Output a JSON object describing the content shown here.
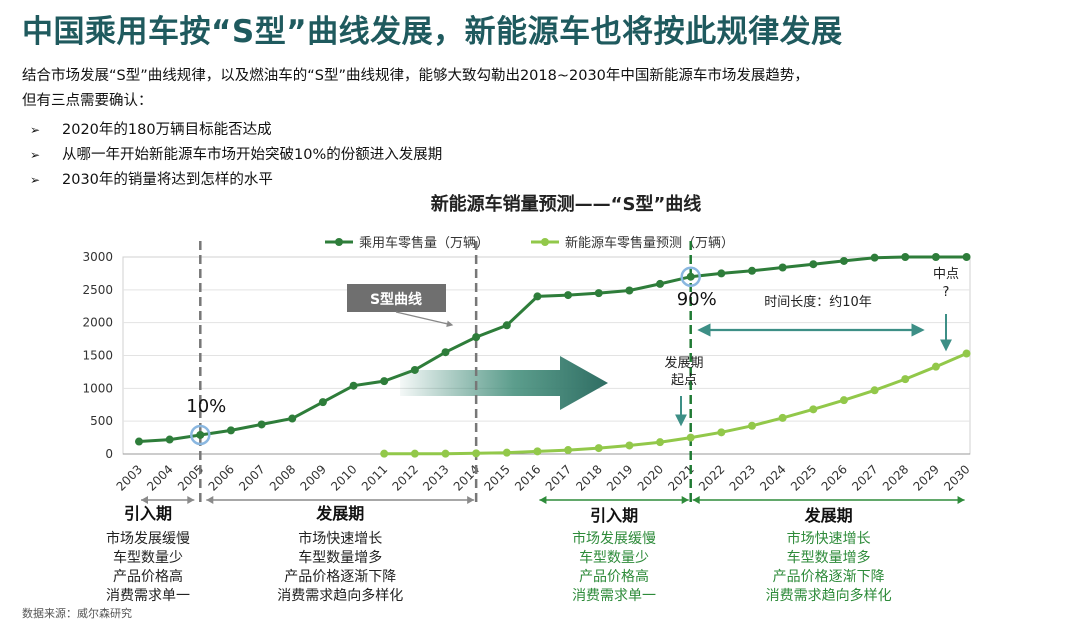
{
  "header": {
    "title": "中国乘用车按“S型”曲线发展，新能源车也将按此规律发展",
    "intro_line1": "结合市场发展“S型”曲线规律，以及燃油车的“S型”曲线规律，能够大致勾勒出2018~2030年中国新能源车市场发展趋势，",
    "intro_line2": "但有三点需要确认：",
    "bullets": [
      "2020年的180万辆目标能否达成",
      "从哪一年开始新能源车市场开始突破10%的份额进入发展期",
      "2030年的销量将达到怎样的水平"
    ]
  },
  "source": "数据来源：威尔森研究",
  "chart_data": {
    "type": "line",
    "title": "新能源车销量预测——“S型”曲线",
    "ylim": [
      0,
      3000
    ],
    "yticks": [
      0,
      500,
      1000,
      1500,
      2000,
      2500,
      3000
    ],
    "categories": [
      "2003",
      "2004",
      "2005",
      "2006",
      "2007",
      "2008",
      "2009",
      "2010",
      "2011",
      "2012",
      "2013",
      "2014",
      "2015",
      "2016",
      "2017",
      "2018",
      "2019",
      "2020",
      "2021",
      "2022",
      "2023",
      "2024",
      "2025",
      "2026",
      "2027",
      "2028",
      "2029",
      "2030"
    ],
    "series": [
      {
        "name": "乘用车零售量（万辆）",
        "color": "#2e7d3a",
        "values": [
          190,
          220,
          290,
          360,
          450,
          540,
          790,
          1040,
          1110,
          1280,
          1550,
          1780,
          1960,
          2400,
          2420,
          2450,
          2490,
          2590,
          2700,
          2750,
          2790,
          2840,
          2890,
          2940,
          2990,
          3000,
          3000,
          3000
        ]
      },
      {
        "name": "新能源车零售量预测（万辆）",
        "color": "#92c84a",
        "values": [
          null,
          null,
          null,
          null,
          null,
          null,
          null,
          null,
          5,
          5,
          5,
          10,
          20,
          40,
          60,
          90,
          130,
          180,
          250,
          330,
          430,
          550,
          680,
          820,
          970,
          1140,
          1330,
          1530
        ]
      }
    ],
    "annotations": {
      "pct10": "10%",
      "pct90": "90%",
      "s_curve": "S型曲线",
      "start_point": [
        "发展期",
        "起点"
      ],
      "mid_point": [
        "中点",
        "?"
      ],
      "duration": "时间长度：约10年"
    },
    "phases": [
      {
        "label": "引入期",
        "desc": [
          "市场发展缓慢",
          "车型数量少",
          "产品价格高",
          "消费需求单一"
        ],
        "color": "#222222",
        "span": [
          "2003",
          "2005"
        ]
      },
      {
        "label": "发展期",
        "desc": [
          "市场快速增长",
          "车型数量增多",
          "产品价格逐渐下降",
          "消费需求趋向多样化"
        ],
        "color": "#222222",
        "span": [
          "2005",
          "2014"
        ]
      },
      {
        "label": "引入期",
        "desc": [
          "市场发展缓慢",
          "车型数量少",
          "产品价格高",
          "消费需求单一"
        ],
        "color": "#2e8b3a",
        "span": [
          "2016",
          "2021"
        ]
      },
      {
        "label": "发展期",
        "desc": [
          "市场快速增长",
          "车型数量增多",
          "产品价格逐渐下降",
          "消费需求趋向多样化"
        ],
        "color": "#2e8b3a",
        "span": [
          "2021",
          "2030"
        ]
      }
    ]
  }
}
